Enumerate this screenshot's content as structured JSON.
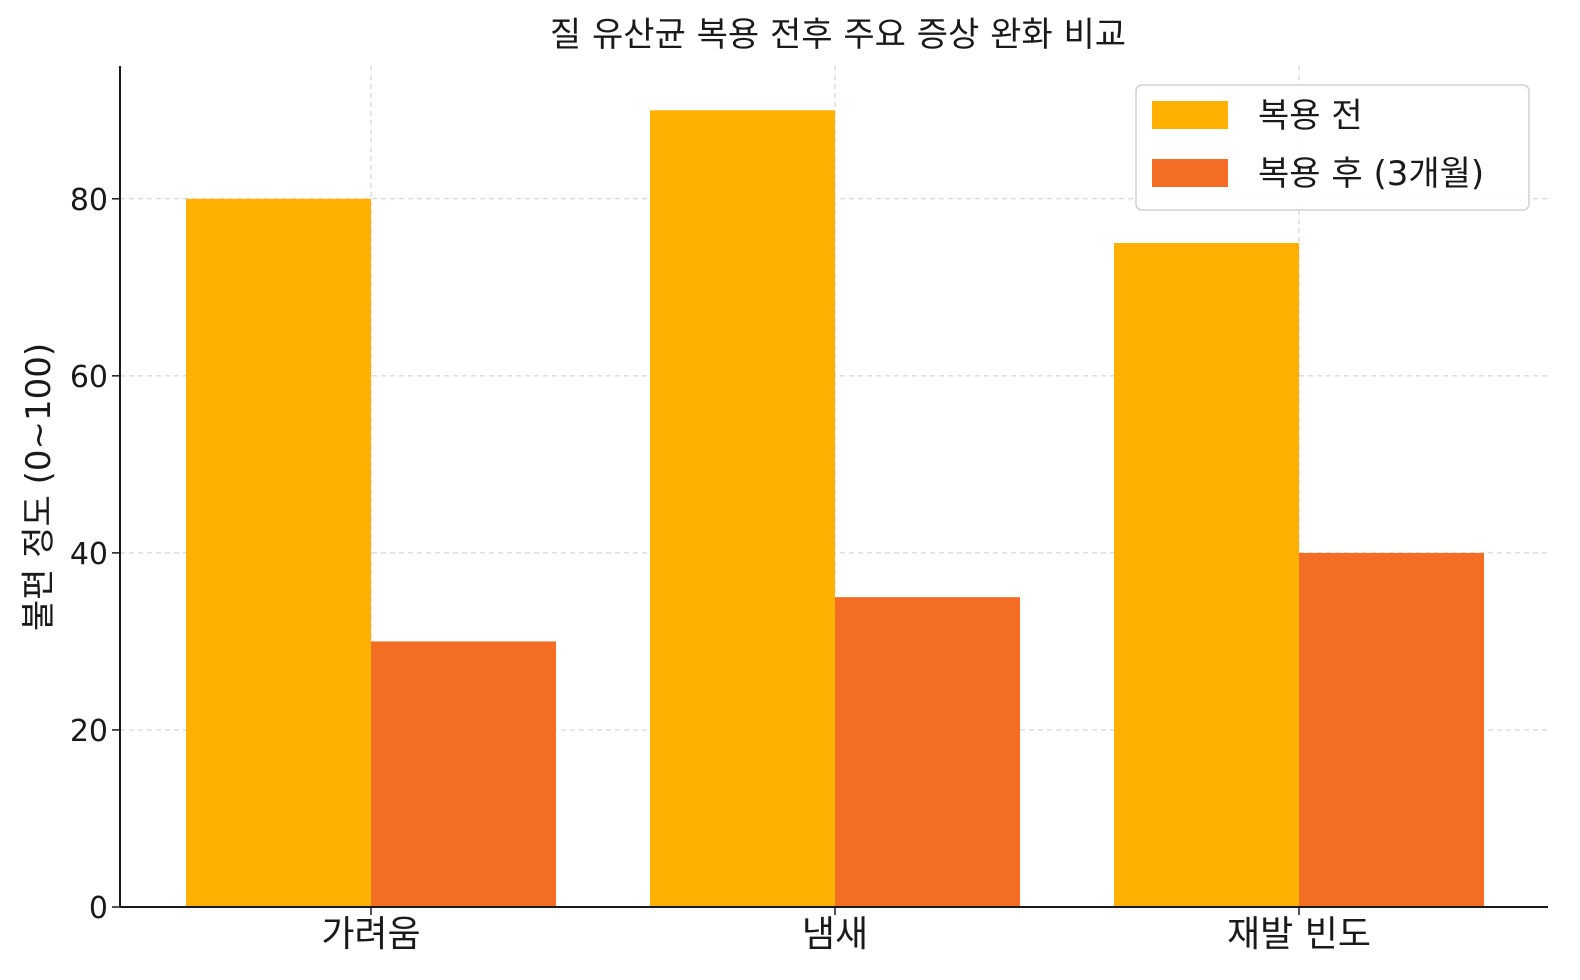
{
  "chart_data": {
    "type": "bar",
    "title": "질 유산균 복용 전후 주요 증상 완화 비교",
    "xlabel": "",
    "ylabel": "불편 정도 (0~100)",
    "categories": [
      "가려움",
      "냄새",
      "재발 빈도"
    ],
    "series": [
      {
        "name": "복용 전",
        "values": [
          80,
          90,
          75
        ],
        "color": "#FFB000"
      },
      {
        "name": "복용 후 (3개월)",
        "values": [
          30,
          35,
          40
        ],
        "color": "#F46D25"
      }
    ],
    "ylim": [
      0,
      95
    ],
    "yticks": [
      0,
      20,
      40,
      60,
      80
    ],
    "grid": true,
    "legend_position": "top-right"
  }
}
